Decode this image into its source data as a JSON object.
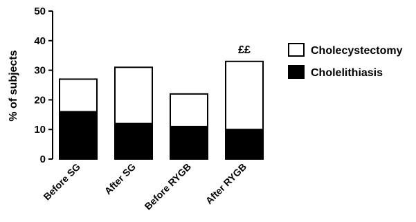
{
  "chart_data": {
    "type": "bar",
    "stacked": true,
    "categories": [
      "Before SG",
      "After SG",
      "Before RYGB",
      "After RYGB"
    ],
    "series": [
      {
        "name": "Cholelithiasis",
        "values": [
          16,
          12,
          11,
          10
        ],
        "color": "#000000"
      },
      {
        "name": "Cholecystectomy",
        "values": [
          11,
          19,
          11,
          23
        ],
        "color": "#ffffff"
      }
    ],
    "xlabel": "",
    "ylabel": "% of subjects",
    "ylim": [
      0,
      50
    ],
    "yticks": [
      0,
      10,
      20,
      30,
      40,
      50
    ],
    "legend_placement": "right",
    "legend_order": [
      "Cholecystectomy",
      "Cholelithiasis"
    ],
    "annotations": [
      {
        "category": "After RYGB",
        "text": "££"
      }
    ],
    "grid": false
  }
}
